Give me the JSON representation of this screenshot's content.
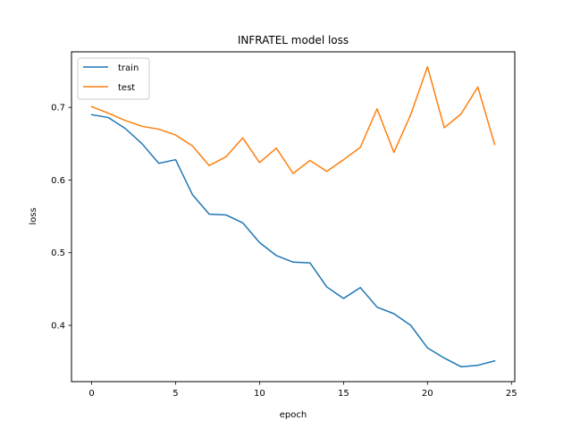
{
  "chart_data": {
    "type": "line",
    "title": "INFRATEL model loss",
    "xlabel": "epoch",
    "ylabel": "loss",
    "xlim": [
      -1.2,
      25.2
    ],
    "ylim": [
      0.3225,
      0.7765
    ],
    "xticks": [
      0,
      5,
      10,
      15,
      20,
      25
    ],
    "yticks": [
      0.4,
      0.5,
      0.6,
      0.7
    ],
    "grid": false,
    "legend": "upper-left",
    "x": [
      0,
      1,
      2,
      3,
      4,
      5,
      6,
      7,
      8,
      9,
      10,
      11,
      12,
      13,
      14,
      15,
      16,
      17,
      18,
      19,
      20,
      21,
      22,
      23,
      24
    ],
    "series": [
      {
        "name": "train",
        "color": "#1f77b4",
        "values": [
          0.69,
          0.686,
          0.671,
          0.65,
          0.623,
          0.628,
          0.58,
          0.553,
          0.552,
          0.541,
          0.514,
          0.496,
          0.487,
          0.486,
          0.453,
          0.437,
          0.452,
          0.425,
          0.416,
          0.4,
          0.369,
          0.355,
          0.343,
          0.345,
          0.351
        ]
      },
      {
        "name": "test",
        "color": "#ff7f0e",
        "values": [
          0.701,
          0.692,
          0.682,
          0.674,
          0.67,
          0.662,
          0.647,
          0.62,
          0.632,
          0.658,
          0.624,
          0.644,
          0.609,
          0.627,
          0.612,
          0.628,
          0.645,
          0.698,
          0.638,
          0.69,
          0.756,
          0.672,
          0.691,
          0.728,
          0.649
        ]
      }
    ]
  }
}
